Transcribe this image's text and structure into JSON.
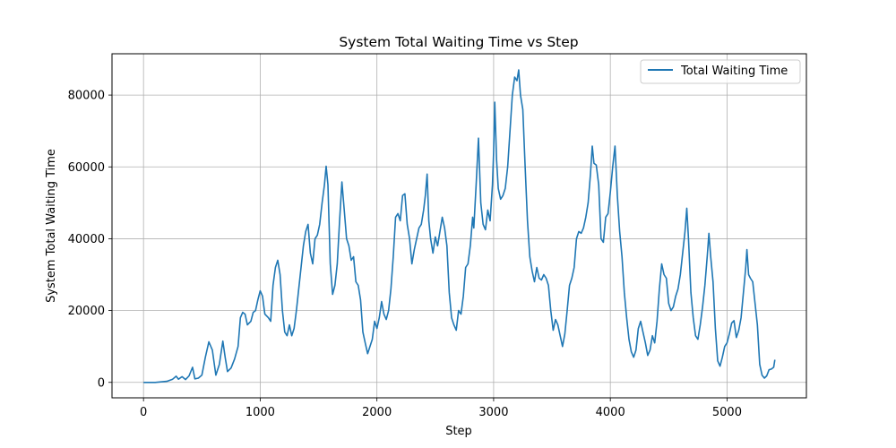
{
  "chart_data": {
    "type": "line",
    "title": "System Total Waiting Time vs Step",
    "xlabel": "Step",
    "ylabel": "System Total Waiting Time",
    "xlim": [
      -270,
      5680
    ],
    "ylim": [
      -4300,
      91500
    ],
    "xticks": [
      0,
      1000,
      2000,
      3000,
      4000,
      5000
    ],
    "yticks": [
      0,
      20000,
      40000,
      60000,
      80000
    ],
    "grid": true,
    "legend_position": "top-right",
    "series": [
      {
        "name": "Total Waiting Time",
        "color": "#1f77b4",
        "points": [
          [
            0,
            0
          ],
          [
            100,
            0
          ],
          [
            150,
            150
          ],
          [
            200,
            300
          ],
          [
            250,
            900
          ],
          [
            280,
            1700
          ],
          [
            300,
            900
          ],
          [
            330,
            1600
          ],
          [
            360,
            800
          ],
          [
            390,
            1800
          ],
          [
            420,
            4200
          ],
          [
            440,
            1000
          ],
          [
            470,
            1200
          ],
          [
            500,
            2000
          ],
          [
            530,
            7000
          ],
          [
            560,
            11300
          ],
          [
            590,
            9000
          ],
          [
            620,
            2000
          ],
          [
            650,
            5000
          ],
          [
            680,
            11500
          ],
          [
            700,
            7000
          ],
          [
            720,
            3000
          ],
          [
            750,
            4000
          ],
          [
            780,
            6500
          ],
          [
            810,
            10000
          ],
          [
            830,
            18000
          ],
          [
            850,
            19500
          ],
          [
            870,
            19000
          ],
          [
            890,
            16000
          ],
          [
            920,
            17000
          ],
          [
            940,
            19500
          ],
          [
            960,
            20000
          ],
          [
            980,
            23000
          ],
          [
            1000,
            25500
          ],
          [
            1020,
            24000
          ],
          [
            1040,
            19000
          ],
          [
            1070,
            18000
          ],
          [
            1090,
            17000
          ],
          [
            1110,
            27000
          ],
          [
            1130,
            32000
          ],
          [
            1150,
            34000
          ],
          [
            1170,
            30000
          ],
          [
            1190,
            20000
          ],
          [
            1210,
            14000
          ],
          [
            1230,
            13000
          ],
          [
            1250,
            16000
          ],
          [
            1270,
            13000
          ],
          [
            1290,
            15000
          ],
          [
            1310,
            20000
          ],
          [
            1330,
            26000
          ],
          [
            1350,
            32000
          ],
          [
            1370,
            38000
          ],
          [
            1390,
            42000
          ],
          [
            1410,
            44000
          ],
          [
            1430,
            36000
          ],
          [
            1450,
            33000
          ],
          [
            1470,
            40000
          ],
          [
            1490,
            41000
          ],
          [
            1510,
            44000
          ],
          [
            1530,
            50000
          ],
          [
            1550,
            55000
          ],
          [
            1565,
            60200
          ],
          [
            1580,
            55000
          ],
          [
            1600,
            33000
          ],
          [
            1620,
            24500
          ],
          [
            1640,
            27000
          ],
          [
            1660,
            33000
          ],
          [
            1680,
            45000
          ],
          [
            1700,
            55800
          ],
          [
            1720,
            48000
          ],
          [
            1740,
            40000
          ],
          [
            1760,
            38000
          ],
          [
            1780,
            34000
          ],
          [
            1800,
            35000
          ],
          [
            1820,
            28000
          ],
          [
            1840,
            27000
          ],
          [
            1860,
            23000
          ],
          [
            1880,
            14000
          ],
          [
            1900,
            11000
          ],
          [
            1920,
            8000
          ],
          [
            1940,
            10000
          ],
          [
            1960,
            12000
          ],
          [
            1980,
            17000
          ],
          [
            2000,
            15000
          ],
          [
            2020,
            18000
          ],
          [
            2040,
            22500
          ],
          [
            2060,
            19000
          ],
          [
            2080,
            17500
          ],
          [
            2100,
            20000
          ],
          [
            2120,
            26000
          ],
          [
            2140,
            35000
          ],
          [
            2160,
            46000
          ],
          [
            2180,
            47000
          ],
          [
            2200,
            45000
          ],
          [
            2220,
            52000
          ],
          [
            2240,
            52500
          ],
          [
            2260,
            44000
          ],
          [
            2280,
            40000
          ],
          [
            2300,
            33000
          ],
          [
            2320,
            37000
          ],
          [
            2340,
            40000
          ],
          [
            2360,
            43000
          ],
          [
            2380,
            44000
          ],
          [
            2400,
            48000
          ],
          [
            2415,
            52000
          ],
          [
            2430,
            58000
          ],
          [
            2445,
            45000
          ],
          [
            2460,
            40000
          ],
          [
            2480,
            36000
          ],
          [
            2500,
            40500
          ],
          [
            2520,
            38000
          ],
          [
            2540,
            42000
          ],
          [
            2560,
            46000
          ],
          [
            2580,
            43000
          ],
          [
            2600,
            38000
          ],
          [
            2620,
            25000
          ],
          [
            2640,
            18000
          ],
          [
            2660,
            16000
          ],
          [
            2680,
            14500
          ],
          [
            2700,
            20000
          ],
          [
            2720,
            19000
          ],
          [
            2740,
            24000
          ],
          [
            2760,
            32000
          ],
          [
            2780,
            33000
          ],
          [
            2800,
            38000
          ],
          [
            2820,
            46000
          ],
          [
            2830,
            43000
          ],
          [
            2850,
            55000
          ],
          [
            2870,
            68000
          ],
          [
            2890,
            50000
          ],
          [
            2910,
            44000
          ],
          [
            2930,
            42500
          ],
          [
            2950,
            48000
          ],
          [
            2970,
            45000
          ],
          [
            2990,
            55000
          ],
          [
            3000,
            64000
          ],
          [
            3010,
            78000
          ],
          [
            3025,
            62000
          ],
          [
            3040,
            54000
          ],
          [
            3060,
            51000
          ],
          [
            3080,
            52000
          ],
          [
            3100,
            54000
          ],
          [
            3120,
            60000
          ],
          [
            3140,
            70000
          ],
          [
            3160,
            80000
          ],
          [
            3180,
            85000
          ],
          [
            3200,
            84000
          ],
          [
            3215,
            87000
          ],
          [
            3230,
            80000
          ],
          [
            3250,
            76000
          ],
          [
            3270,
            60000
          ],
          [
            3290,
            45000
          ],
          [
            3310,
            35000
          ],
          [
            3330,
            31000
          ],
          [
            3350,
            28000
          ],
          [
            3370,
            32000
          ],
          [
            3390,
            29000
          ],
          [
            3410,
            28500
          ],
          [
            3430,
            30000
          ],
          [
            3450,
            29000
          ],
          [
            3470,
            27000
          ],
          [
            3490,
            20000
          ],
          [
            3510,
            14500
          ],
          [
            3530,
            17500
          ],
          [
            3550,
            16000
          ],
          [
            3570,
            13000
          ],
          [
            3590,
            10000
          ],
          [
            3610,
            13500
          ],
          [
            3630,
            20000
          ],
          [
            3650,
            27000
          ],
          [
            3670,
            29000
          ],
          [
            3690,
            32000
          ],
          [
            3710,
            40000
          ],
          [
            3730,
            42000
          ],
          [
            3750,
            41500
          ],
          [
            3770,
            43000
          ],
          [
            3790,
            46000
          ],
          [
            3810,
            50000
          ],
          [
            3830,
            58000
          ],
          [
            3845,
            65800
          ],
          [
            3860,
            61000
          ],
          [
            3880,
            60500
          ],
          [
            3900,
            55000
          ],
          [
            3920,
            40000
          ],
          [
            3940,
            39000
          ],
          [
            3960,
            46000
          ],
          [
            3980,
            47000
          ],
          [
            4000,
            53000
          ],
          [
            4020,
            60000
          ],
          [
            4040,
            65800
          ],
          [
            4060,
            52000
          ],
          [
            4080,
            42000
          ],
          [
            4100,
            35000
          ],
          [
            4120,
            25000
          ],
          [
            4140,
            18000
          ],
          [
            4160,
            12000
          ],
          [
            4180,
            8500
          ],
          [
            4200,
            7000
          ],
          [
            4220,
            9000
          ],
          [
            4240,
            15000
          ],
          [
            4260,
            17000
          ],
          [
            4280,
            14000
          ],
          [
            4300,
            11000
          ],
          [
            4320,
            7500
          ],
          [
            4340,
            9000
          ],
          [
            4360,
            13000
          ],
          [
            4380,
            11000
          ],
          [
            4400,
            17000
          ],
          [
            4420,
            26000
          ],
          [
            4440,
            33000
          ],
          [
            4460,
            30000
          ],
          [
            4480,
            29000
          ],
          [
            4500,
            22000
          ],
          [
            4520,
            20000
          ],
          [
            4540,
            21000
          ],
          [
            4560,
            24000
          ],
          [
            4580,
            26000
          ],
          [
            4600,
            30000
          ],
          [
            4620,
            36000
          ],
          [
            4640,
            42000
          ],
          [
            4655,
            48500
          ],
          [
            4670,
            40000
          ],
          [
            4690,
            25000
          ],
          [
            4710,
            18000
          ],
          [
            4730,
            13000
          ],
          [
            4750,
            12000
          ],
          [
            4770,
            16000
          ],
          [
            4790,
            21000
          ],
          [
            4810,
            27000
          ],
          [
            4830,
            35000
          ],
          [
            4845,
            41500
          ],
          [
            4860,
            35000
          ],
          [
            4880,
            28000
          ],
          [
            4900,
            15000
          ],
          [
            4920,
            6000
          ],
          [
            4940,
            4500
          ],
          [
            4960,
            7000
          ],
          [
            4980,
            10000
          ],
          [
            5000,
            11000
          ],
          [
            5020,
            13500
          ],
          [
            5040,
            16500
          ],
          [
            5060,
            17200
          ],
          [
            5080,
            12500
          ],
          [
            5100,
            14500
          ],
          [
            5120,
            18000
          ],
          [
            5140,
            25000
          ],
          [
            5160,
            32000
          ],
          [
            5170,
            37000
          ],
          [
            5185,
            30000
          ],
          [
            5200,
            29000
          ],
          [
            5220,
            28000
          ],
          [
            5240,
            22000
          ],
          [
            5260,
            16000
          ],
          [
            5280,
            5000
          ],
          [
            5300,
            2000
          ],
          [
            5320,
            1200
          ],
          [
            5340,
            1800
          ],
          [
            5360,
            3500
          ],
          [
            5380,
            3700
          ],
          [
            5400,
            4200
          ],
          [
            5410,
            6300
          ]
        ]
      }
    ]
  }
}
